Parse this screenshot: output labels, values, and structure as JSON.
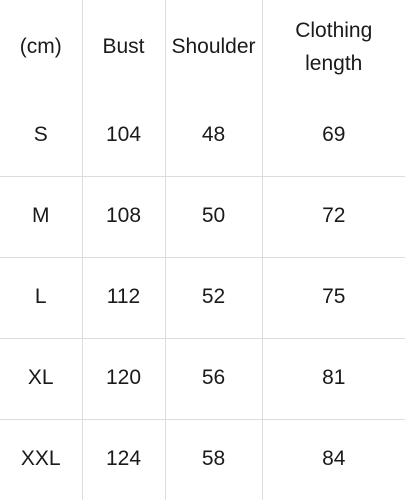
{
  "table": {
    "headers": [
      "(cm)",
      "Bust",
      "Shoulder",
      "Clothing\nlength"
    ],
    "rows": [
      [
        "S",
        "104",
        "48",
        "69"
      ],
      [
        "M",
        "108",
        "50",
        "72"
      ],
      [
        "L",
        "112",
        "52",
        "75"
      ],
      [
        "XL",
        "120",
        "56",
        "81"
      ],
      [
        "XXL",
        "124",
        "58",
        "84"
      ]
    ]
  },
  "colors": {
    "background": "#ffffff",
    "text": "#1a1a1a",
    "grid": "#dcdcdc"
  }
}
